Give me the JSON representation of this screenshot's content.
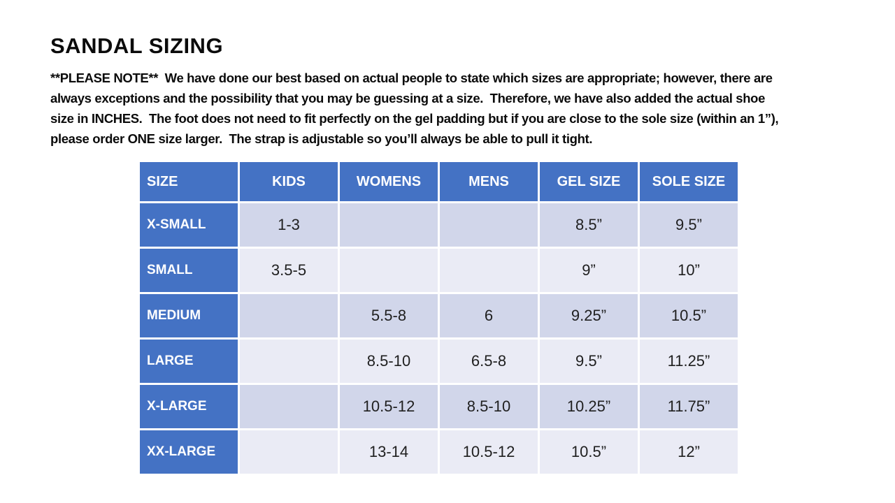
{
  "slide": {
    "title": "SANDAL SIZING",
    "note": {
      "lines": [
        "**PLEASE NOTE**  We have done our best based on actual people to state which sizes are appropriate; however, there are",
        "always exceptions and the possibility that you may be guessing at a size.  Therefore, we have also added the actual shoe",
        "size in INCHES.  The foot does not need to fit perfectly on the gel padding but if you are close to the sole size (within an 1”),",
        "please order ONE size larger.  The strap is adjustable so you’ll always be able to pull it tight."
      ]
    }
  },
  "table": {
    "headers": [
      "SIZE",
      "KIDS",
      "WOMENS",
      "MENS",
      "GEL SIZE",
      "SOLE SIZE"
    ],
    "rows": [
      [
        "X-SMALL",
        "1-3",
        "",
        "",
        "8.5”",
        "9.5”"
      ],
      [
        "SMALL",
        "3.5-5",
        "",
        "",
        "9”",
        "10”"
      ],
      [
        "MEDIUM",
        "",
        "5.5-8",
        "6",
        "9.25”",
        "10.5”"
      ],
      [
        "LARGE",
        "",
        "8.5-10",
        "6.5-8",
        "9.5”",
        "11.25”"
      ],
      [
        "X-LARGE",
        "",
        "10.5-12",
        "8.5-10",
        "10.25”",
        "11.75”"
      ],
      [
        "XX-LARGE",
        "",
        "13-14",
        "10.5-12",
        "10.5”",
        "12”"
      ]
    ]
  },
  "colors": {
    "header_bg": "#4472C4",
    "header_text": "#FFFFFF",
    "band_dark": "#D1D6EA",
    "band_light": "#EAEBF5",
    "body_text": "#1F1F1F",
    "page_bg": "#FFFFFF"
  }
}
